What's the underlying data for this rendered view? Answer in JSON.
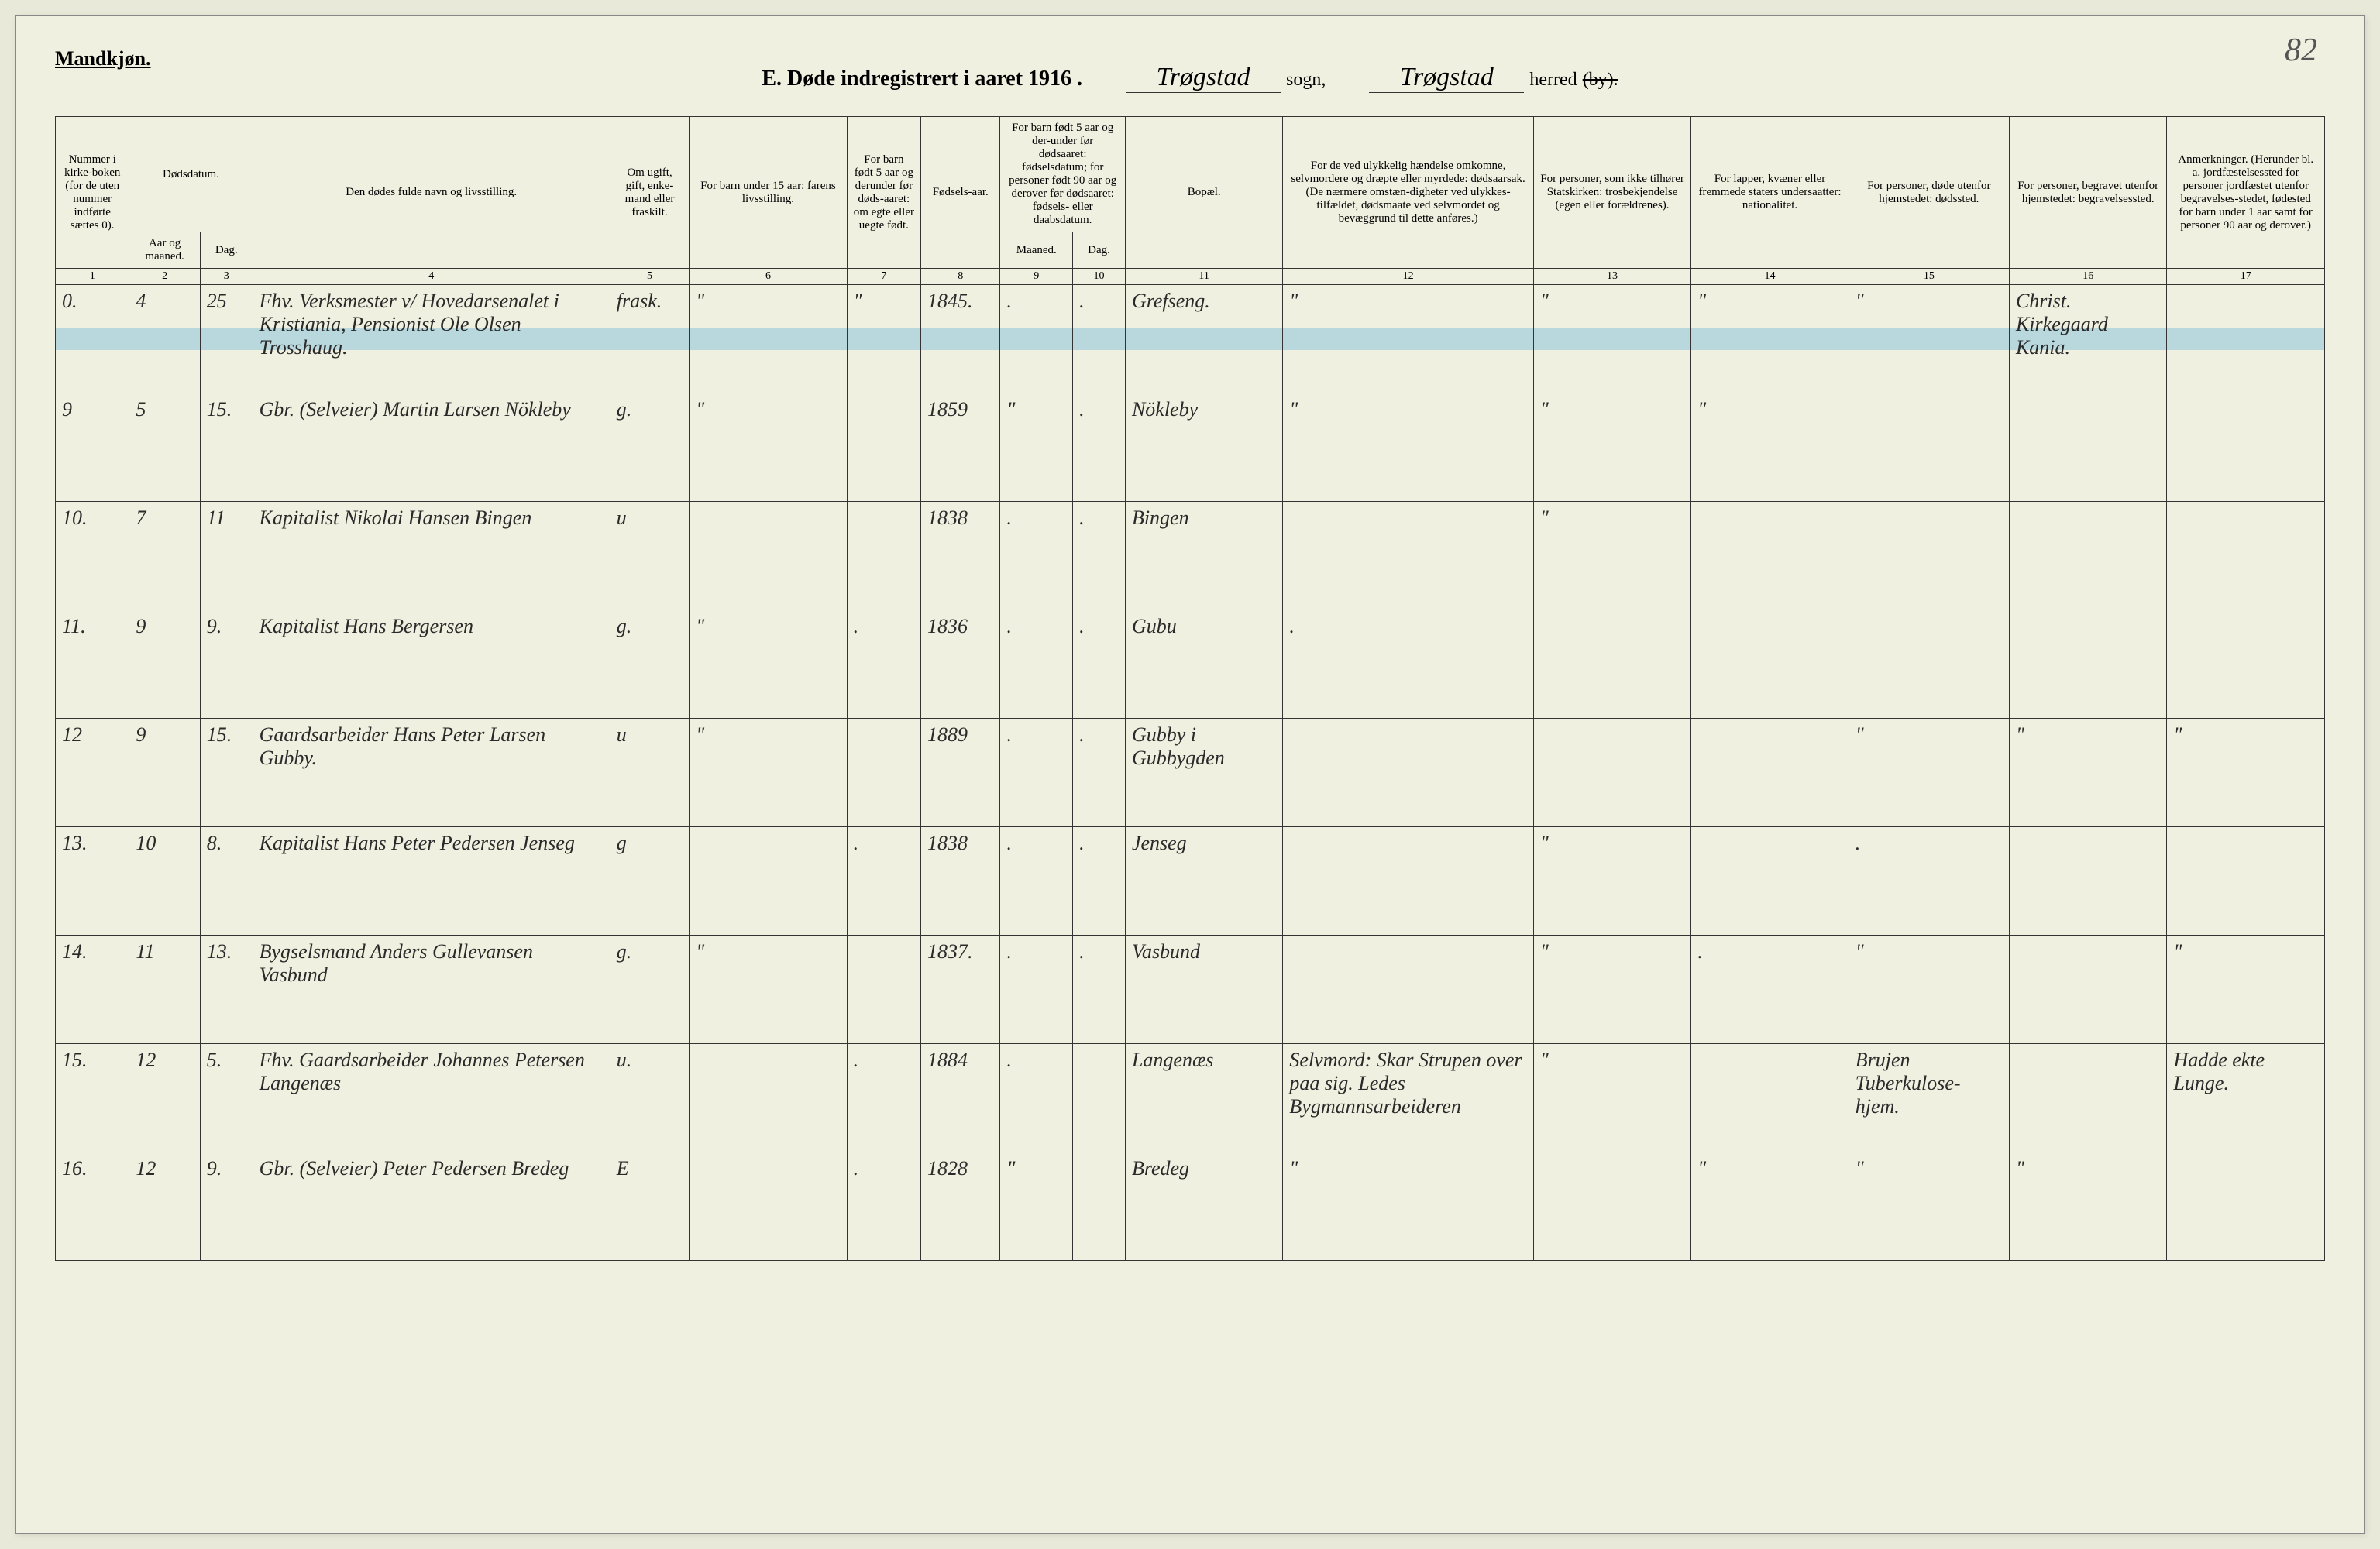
{
  "pageCorner": "82",
  "gender": "Mandkjøn.",
  "title": {
    "prefix": "E.   Døde indregistrert i aaret 1916 .",
    "sogn": "Trøgstad",
    "sognLabel": "sogn,",
    "herred": "Trøgstad",
    "herredLabel": "herred",
    "byStruck": "(by)."
  },
  "columns": [
    {
      "n": "1",
      "label": "Nummer i kirke-boken (for de uten nummer indførte sættes 0)."
    },
    {
      "n": "2",
      "label": "Aar og maaned."
    },
    {
      "n": "3",
      "label": "Dag."
    },
    {
      "n": "4",
      "label": "Den dødes fulde navn og livsstilling."
    },
    {
      "n": "5",
      "label": "Om ugift, gift, enke-mand eller fraskilt."
    },
    {
      "n": "6",
      "label": "For barn under 15 aar: farens livsstilling."
    },
    {
      "n": "7",
      "label": "For barn født 5 aar og derunder før døds-aaret: om egte eller uegte født."
    },
    {
      "n": "8",
      "label": "Fødsels-aar."
    },
    {
      "n": "9",
      "label": "Maaned."
    },
    {
      "n": "10",
      "label": "Dag."
    },
    {
      "n": "11",
      "label": "Bopæl."
    },
    {
      "n": "12",
      "label": "For de ved ulykkelig hændelse omkomne, selvmordere og dræpte eller myrdede: dødsaarsak. (De nærmere omstæn-digheter ved ulykkes-tilfældet, dødsmaate ved selvmordet og bevæggrund til dette anføres.)"
    },
    {
      "n": "13",
      "label": "For personer, som ikke tilhører Statskirken: trosbekjendelse (egen eller forældrenes)."
    },
    {
      "n": "14",
      "label": "For lapper, kvæner eller fremmede staters undersaatter: nationalitet."
    },
    {
      "n": "15",
      "label": "For personer, døde utenfor hjemstedet: dødssted."
    },
    {
      "n": "16",
      "label": "For personer, begravet utenfor hjemstedet: begravelsessted."
    },
    {
      "n": "17",
      "label": "Anmerkninger. (Herunder bl. a. jordfæstelsessted for personer jordfæstet utenfor begravelses-stedet, fødested for barn under 1 aar samt for personer 90 aar og derover.)"
    }
  ],
  "dateHeader": "Dødsdatum.",
  "subHeader910": "For barn født 5 aar og der-under før dødsaaret: fødselsdatum; for personer født 90 aar og derover før dødsaaret: fødsels- eller daabsdatum.",
  "rows": [
    {
      "highlight": true,
      "c1": "0.",
      "c2": "4",
      "c3": "25",
      "c4": "Fhv. Verksmester v/ Hovedarsenalet i Kristiania, Pensionist Ole Olsen Trosshaug.",
      "c5": "frask.",
      "c6": "\"",
      "c7": "\"",
      "c8": "1845.",
      "c9": ".",
      "c10": ".",
      "c11": "Grefseng.",
      "c12": "\"",
      "c13": "\"",
      "c14": "\"",
      "c15": "\"",
      "c16": "Christ. Kirkegaard Kania.",
      "c17": ""
    },
    {
      "c1": "9",
      "c2": "5",
      "c3": "15.",
      "c4": "Gbr. (Selveier) Martin Larsen Nökleby",
      "c5": "g.",
      "c6": "\"",
      "c7": "",
      "c8": "1859",
      "c9": "\"",
      "c10": ".",
      "c11": "Nökleby",
      "c12": "\"",
      "c13": "\"",
      "c14": "\"",
      "c15": "",
      "c16": "",
      "c17": ""
    },
    {
      "c1": "10.",
      "c2": "7",
      "c3": "11",
      "c4": "Kapitalist Nikolai Hansen Bingen",
      "c5": "u",
      "c6": "",
      "c7": "",
      "c8": "1838",
      "c9": ".",
      "c10": ".",
      "c11": "Bingen",
      "c12": "",
      "c13": "\"",
      "c14": "",
      "c15": "",
      "c16": "",
      "c17": ""
    },
    {
      "c1": "11.",
      "c2": "9",
      "c3": "9.",
      "c4": "Kapitalist Hans Bergersen",
      "c5": "g.",
      "c6": "\"",
      "c7": ".",
      "c8": "1836",
      "c9": ".",
      "c10": ".",
      "c11": "Gubu",
      "c12": ".",
      "c13": "",
      "c14": "",
      "c15": "",
      "c16": "",
      "c17": ""
    },
    {
      "c1": "12",
      "c2": "9",
      "c3": "15.",
      "c4": "Gaardsarbeider Hans Peter Larsen Gubby.",
      "c5": "u",
      "c6": "\"",
      "c7": "",
      "c8": "1889",
      "c9": ".",
      "c10": ".",
      "c11": "Gubby i Gubbygden",
      "c12": "",
      "c13": "",
      "c14": "",
      "c15": "\"",
      "c16": "\"",
      "c17": "\""
    },
    {
      "c1": "13.",
      "c2": "10",
      "c3": "8.",
      "c4": "Kapitalist Hans Peter Pedersen Jenseg",
      "c5": "g",
      "c6": "",
      "c7": ".",
      "c8": "1838",
      "c9": ".",
      "c10": ".",
      "c11": "Jenseg",
      "c12": "",
      "c13": "\"",
      "c14": "",
      "c15": ".",
      "c16": "",
      "c17": ""
    },
    {
      "c1": "14.",
      "c2": "11",
      "c3": "13.",
      "c4": "Bygselsmand Anders Gullevansen Vasbund",
      "c5": "g.",
      "c6": "\"",
      "c7": "",
      "c8": "1837.",
      "c9": ".",
      "c10": ".",
      "c11": "Vasbund",
      "c12": "",
      "c13": "\"",
      "c14": ".",
      "c15": "\"",
      "c16": "",
      "c17": "\""
    },
    {
      "c1": "15.",
      "c2": "12",
      "c3": "5.",
      "c4": "Fhv. Gaardsarbeider Johannes Petersen Langenæs",
      "c5": "u.",
      "c6": "",
      "c7": ".",
      "c8": "1884",
      "c9": ".",
      "c10": "",
      "c11": "Langenæs",
      "c12": "Selvmord: Skar Strupen over paa sig. Ledes Bygmannsarbeideren",
      "c13": "\"",
      "c14": "",
      "c15": "Brujen Tuberkulose-hjem.",
      "c16": "",
      "c17": "Hadde ekte Lunge."
    },
    {
      "c1": "16.",
      "c2": "12",
      "c3": "9.",
      "c4": "Gbr. (Selveier) Peter Pedersen Bredeg",
      "c5": "E",
      "c6": "",
      "c7": ".",
      "c8": "1828",
      "c9": "\"",
      "c10": "",
      "c11": "Bredeg",
      "c12": "\"",
      "c13": "",
      "c14": "\"",
      "c15": "\"",
      "c16": "\"",
      "c17": ""
    }
  ]
}
